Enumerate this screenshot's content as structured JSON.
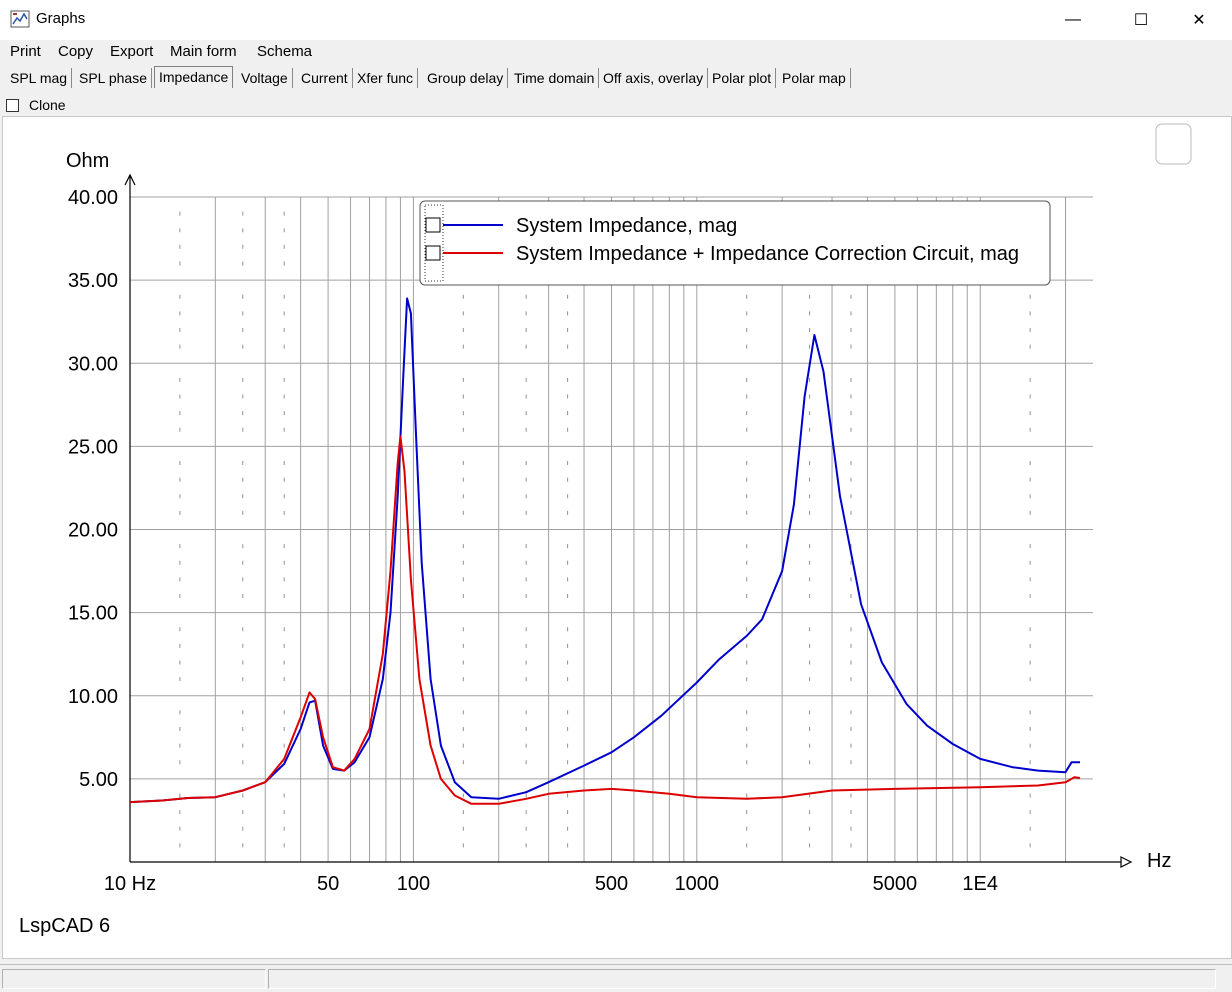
{
  "window": {
    "title": "Graphs",
    "minimize_glyph": "—",
    "maximize_glyph": "☐",
    "close_glyph": "✕",
    "icon": "app-graph-icon"
  },
  "menu": [
    {
      "label": "Print"
    },
    {
      "label": "Copy"
    },
    {
      "label": "Export"
    },
    {
      "label": "Main form"
    },
    {
      "label": "Schema"
    }
  ],
  "tabs": [
    {
      "label": "SPL mag"
    },
    {
      "label": "SPL phase"
    },
    {
      "label": "Impedance",
      "active": true
    },
    {
      "label": "Voltage"
    },
    {
      "label": "Current"
    },
    {
      "label": "Xfer func"
    },
    {
      "label": "Group delay"
    },
    {
      "label": "Time domain"
    },
    {
      "label": "Off axis, overlay"
    },
    {
      "label": "Polar plot"
    },
    {
      "label": "Polar map"
    }
  ],
  "clone": {
    "label": "Clone",
    "checked": false
  },
  "watermark": "LspCAD 6",
  "chart_data": {
    "type": "line",
    "ylabel": "Ohm",
    "xlabel": "Hz",
    "x_scale": "log",
    "xlim": [
      10,
      25000
    ],
    "ylim": [
      0,
      40
    ],
    "x_ticks": [
      {
        "value": 10,
        "label": "10 Hz"
      },
      {
        "value": 50,
        "label": "50"
      },
      {
        "value": 100,
        "label": "100"
      },
      {
        "value": 500,
        "label": "500"
      },
      {
        "value": 1000,
        "label": "1000"
      },
      {
        "value": 5000,
        "label": "5000"
      },
      {
        "value": 10000,
        "label": "1E4"
      }
    ],
    "y_ticks": [
      {
        "value": 5,
        "label": "5.00"
      },
      {
        "value": 10,
        "label": "10.00"
      },
      {
        "value": 15,
        "label": "15.00"
      },
      {
        "value": 20,
        "label": "20.00"
      },
      {
        "value": 25,
        "label": "25.00"
      },
      {
        "value": 30,
        "label": "30.00"
      },
      {
        "value": 35,
        "label": "35.00"
      },
      {
        "value": 40,
        "label": "40.00"
      }
    ],
    "grid": true,
    "legend_position": "top-right",
    "series": [
      {
        "name": "System Impedance, mag",
        "color": "#0000cc",
        "points": [
          [
            10,
            3.6
          ],
          [
            13,
            3.7
          ],
          [
            16,
            3.85
          ],
          [
            20,
            3.9
          ],
          [
            25,
            4.3
          ],
          [
            30,
            4.8
          ],
          [
            35,
            5.9
          ],
          [
            40,
            8.0
          ],
          [
            43,
            9.6
          ],
          [
            45,
            9.7
          ],
          [
            48,
            7.0
          ],
          [
            52,
            5.6
          ],
          [
            57,
            5.5
          ],
          [
            62,
            6.0
          ],
          [
            70,
            7.5
          ],
          [
            78,
            11.0
          ],
          [
            83,
            15.0
          ],
          [
            88,
            22.0
          ],
          [
            92,
            29.0
          ],
          [
            95,
            33.9
          ],
          [
            98,
            33.0
          ],
          [
            102,
            26.0
          ],
          [
            107,
            18.0
          ],
          [
            115,
            11.0
          ],
          [
            125,
            7.0
          ],
          [
            140,
            4.8
          ],
          [
            160,
            3.9
          ],
          [
            200,
            3.8
          ],
          [
            250,
            4.2
          ],
          [
            300,
            4.8
          ],
          [
            400,
            5.8
          ],
          [
            500,
            6.6
          ],
          [
            600,
            7.5
          ],
          [
            750,
            8.8
          ],
          [
            1000,
            10.8
          ],
          [
            1200,
            12.2
          ],
          [
            1500,
            13.6
          ],
          [
            1700,
            14.6
          ],
          [
            2000,
            17.5
          ],
          [
            2200,
            21.5
          ],
          [
            2400,
            28.0
          ],
          [
            2600,
            31.7
          ],
          [
            2800,
            29.5
          ],
          [
            3200,
            22.0
          ],
          [
            3800,
            15.5
          ],
          [
            4500,
            12.0
          ],
          [
            5500,
            9.5
          ],
          [
            6500,
            8.2
          ],
          [
            8000,
            7.1
          ],
          [
            10000,
            6.2
          ],
          [
            13000,
            5.7
          ],
          [
            16000,
            5.5
          ],
          [
            20000,
            5.4
          ],
          [
            21000,
            6.0
          ],
          [
            22500,
            6.0
          ]
        ]
      },
      {
        "name": "System Impedance + Impedance Correction Circuit, mag",
        "color": "#dd0000",
        "points": [
          [
            10,
            3.6
          ],
          [
            13,
            3.7
          ],
          [
            16,
            3.85
          ],
          [
            20,
            3.9
          ],
          [
            25,
            4.3
          ],
          [
            30,
            4.8
          ],
          [
            35,
            6.2
          ],
          [
            40,
            8.7
          ],
          [
            43,
            10.2
          ],
          [
            45,
            9.8
          ],
          [
            48,
            7.5
          ],
          [
            52,
            5.7
          ],
          [
            57,
            5.5
          ],
          [
            62,
            6.2
          ],
          [
            70,
            8.0
          ],
          [
            78,
            12.5
          ],
          [
            83,
            17.5
          ],
          [
            88,
            24.0
          ],
          [
            90,
            25.6
          ],
          [
            93,
            23.5
          ],
          [
            98,
            17.0
          ],
          [
            105,
            11.0
          ],
          [
            115,
            7.0
          ],
          [
            125,
            5.0
          ],
          [
            140,
            4.0
          ],
          [
            160,
            3.5
          ],
          [
            200,
            3.5
          ],
          [
            250,
            3.8
          ],
          [
            300,
            4.1
          ],
          [
            400,
            4.3
          ],
          [
            500,
            4.4
          ],
          [
            600,
            4.3
          ],
          [
            800,
            4.1
          ],
          [
            1000,
            3.9
          ],
          [
            1500,
            3.8
          ],
          [
            2000,
            3.9
          ],
          [
            3000,
            4.3
          ],
          [
            5000,
            4.4
          ],
          [
            10000,
            4.5
          ],
          [
            16000,
            4.6
          ],
          [
            20000,
            4.8
          ],
          [
            21500,
            5.1
          ],
          [
            22500,
            5.05
          ]
        ]
      }
    ]
  }
}
